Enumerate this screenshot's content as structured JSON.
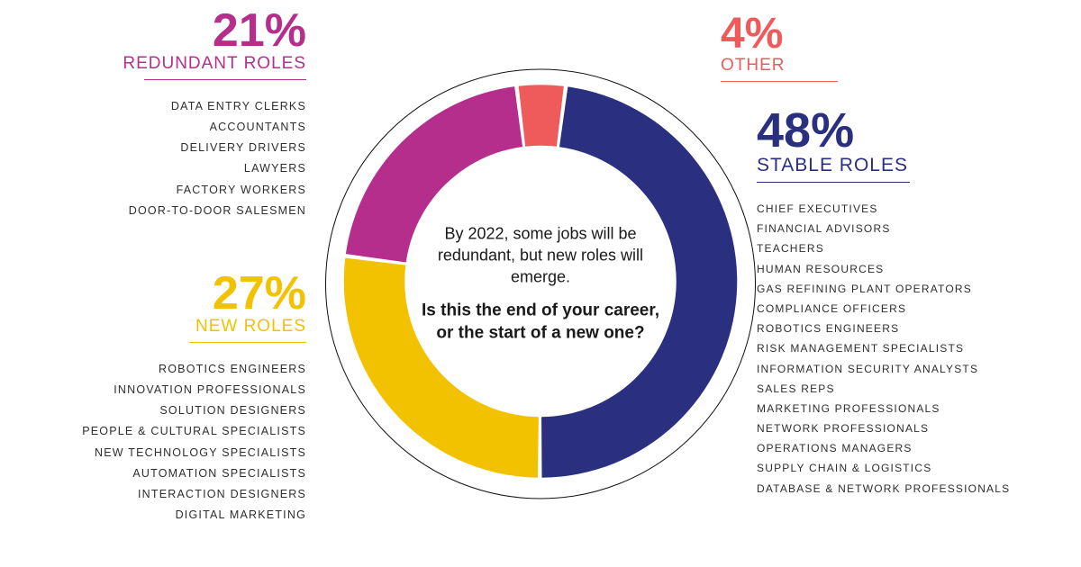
{
  "chart": {
    "type": "donut",
    "size": 450,
    "outline_diameter": 478,
    "ring_width_outer_ratio": 0.97,
    "ring_width_inner_ratio": 0.67,
    "gap_deg": 1.2,
    "background_color": "#ffffff",
    "outline_color": "#111111",
    "segments": [
      {
        "key": "other",
        "value": 4,
        "color": "#ef5b5b"
      },
      {
        "key": "stable",
        "value": 48,
        "color": "#2a2f80"
      },
      {
        "key": "new",
        "value": 27,
        "color": "#f2c200"
      },
      {
        "key": "redundant",
        "value": 21,
        "color": "#b52e8c"
      }
    ],
    "start_angle_deg": -97
  },
  "center": {
    "lead": "By 2022, some jobs will be redundant, but new roles will emerge.",
    "question": "Is this the end of your career, or the start of a new one?"
  },
  "categories": {
    "redundant": {
      "pct": "21%",
      "label": "REDUNDANT ROLES",
      "color": "#b52e8c",
      "underline_color": "#b52e8c",
      "jobs": [
        "DATA ENTRY CLERKS",
        "ACCOUNTANTS",
        "DELIVERY DRIVERS",
        "LAWYERS",
        "FACTORY WORKERS",
        "DOOR-TO-DOOR SALESMEN"
      ]
    },
    "new": {
      "pct": "27%",
      "label": "NEW ROLES",
      "color": "#f2c200",
      "underline_color": "#f2c200",
      "jobs": [
        "ROBOTICS ENGINEERS",
        "INNOVATION PROFESSIONALS",
        "SOLUTION DESIGNERS",
        "PEOPLE & CULTURAL SPECIALISTS",
        "NEW TECHNOLOGY SPECIALISTS",
        "AUTOMATION SPECIALISTS",
        "INTERACTION DESIGNERS",
        "DIGITAL MARKETING"
      ]
    },
    "other": {
      "pct": "4%",
      "label": "OTHER",
      "color": "#ef5b5b",
      "underline_color": "#ef5b5b",
      "jobs": []
    },
    "stable": {
      "pct": "48%",
      "label": "STABLE ROLES",
      "color": "#2a2f80",
      "underline_color": "#2a2f80",
      "jobs": [
        "CHIEF EXECUTIVES",
        "FINANCIAL ADVISORS",
        "TEACHERS",
        "HUMAN RESOURCES",
        "GAS REFINING PLANT OPERATORS",
        "COMPLIANCE OFFICERS",
        "ROBOTICS ENGINEERS",
        "RISK MANAGEMENT SPECIALISTS",
        "INFORMATION SECURITY ANALYSTS",
        "SALES REPS",
        "MARKETING PROFESSIONALS",
        "NETWORK PROFESSIONALS",
        "OPERATIONS MANAGERS",
        "SUPPLY CHAIN & LOGISTICS",
        "DATABASE & NETWORK PROFESSIONALS"
      ]
    }
  }
}
